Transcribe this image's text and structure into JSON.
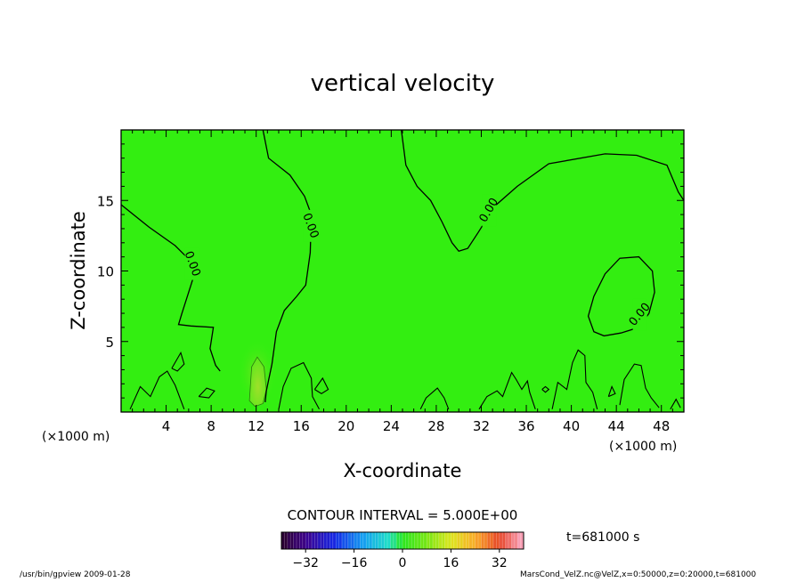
{
  "chart_data": {
    "type": "heatmap",
    "title": "vertical velocity",
    "xlabel": "X-coordinate",
    "ylabel": "Z-coordinate",
    "x_unit": "(×1000 m)",
    "xlim": [
      0,
      50
    ],
    "ylim": [
      0,
      20
    ],
    "xticks": [
      4,
      8,
      12,
      16,
      20,
      24,
      28,
      32,
      36,
      40,
      44,
      48
    ],
    "yticks": [
      5,
      10,
      15
    ],
    "contour_interval_label": "CONTOUR INTERVAL = 5.000E+00",
    "time_label": "t=681000 s",
    "background_color": "#33ee11",
    "colorbar": {
      "ticks": [
        -32,
        -16,
        0,
        16,
        32
      ],
      "range": [
        -40,
        40
      ]
    },
    "contours": [
      {
        "level_label": "0.00",
        "label_x": 6.3,
        "label_y": 10.5,
        "points": [
          [
            0,
            14.7
          ],
          [
            2.5,
            13.1
          ],
          [
            4.8,
            11.8
          ],
          [
            5.8,
            11
          ],
          [
            6.6,
            10
          ],
          [
            6.2,
            9
          ],
          [
            5.4,
            7
          ],
          [
            5.1,
            6.2
          ],
          [
            6.2,
            6.1
          ],
          [
            8.2,
            6
          ],
          [
            7.9,
            4.5
          ],
          [
            8.4,
            3.3
          ],
          [
            8.8,
            2.9
          ]
        ]
      },
      {
        "level_label": "0.00",
        "label_x": 16.8,
        "label_y": 13.2,
        "points": [
          [
            12.6,
            20
          ],
          [
            13.1,
            18
          ],
          [
            15,
            16.8
          ],
          [
            16.3,
            15.3
          ],
          [
            16.9,
            14
          ],
          [
            16.8,
            11.3
          ],
          [
            16.4,
            9
          ],
          [
            15.6,
            8.2
          ],
          [
            14.5,
            7.2
          ],
          [
            13.8,
            5.7
          ],
          [
            13.4,
            3.4
          ],
          [
            12.9,
            1.5
          ],
          [
            12.8,
            0.7
          ]
        ]
      },
      {
        "level_label": "0.00",
        "label_x": 32.7,
        "label_y": 14.3,
        "points": [
          [
            24.9,
            20
          ],
          [
            25.3,
            17.5
          ],
          [
            26.3,
            16
          ],
          [
            27.5,
            15
          ],
          [
            28.5,
            13.5
          ],
          [
            29.4,
            12
          ],
          [
            30,
            11.4
          ],
          [
            30.8,
            11.6
          ],
          [
            31.7,
            12.7
          ],
          [
            33.2,
            14.6
          ],
          [
            35.2,
            16
          ],
          [
            38,
            17.6
          ],
          [
            43,
            18.3
          ],
          [
            45.8,
            18.2
          ],
          [
            48.5,
            17.5
          ],
          [
            49.5,
            15.6
          ],
          [
            50,
            15
          ]
        ]
      },
      {
        "level_label": "0.00",
        "label_x": 46.1,
        "label_y": 6.9,
        "closed": true,
        "points": [
          [
            42,
            8.2
          ],
          [
            43,
            9.8
          ],
          [
            44.3,
            10.9
          ],
          [
            46,
            11
          ],
          [
            47.2,
            10
          ],
          [
            47.4,
            8.5
          ],
          [
            46.9,
            7
          ],
          [
            46,
            6
          ],
          [
            44.4,
            5.6
          ],
          [
            42.9,
            5.4
          ],
          [
            42,
            5.7
          ],
          [
            41.5,
            6.8
          ]
        ]
      }
    ],
    "small_contours": [
      [
        [
          0.8,
          0.2
        ],
        [
          1.7,
          1.8
        ],
        [
          2.6,
          1.1
        ],
        [
          3.4,
          2.5
        ],
        [
          4.1,
          2.9
        ],
        [
          4.8,
          1.9
        ],
        [
          5.6,
          0.2
        ]
      ],
      [
        [
          4.5,
          3.1
        ],
        [
          5.3,
          4.2
        ],
        [
          5.6,
          3.4
        ],
        [
          5,
          2.9
        ],
        [
          4.5,
          3.1
        ]
      ],
      [
        [
          6.9,
          1.1
        ],
        [
          7.6,
          1.7
        ],
        [
          8.3,
          1.5
        ],
        [
          7.8,
          1
        ],
        [
          6.9,
          1.1
        ]
      ],
      [
        [
          14,
          0.2
        ],
        [
          14.4,
          1.8
        ],
        [
          15.1,
          3.1
        ],
        [
          16.2,
          3.5
        ],
        [
          16.9,
          2.4
        ],
        [
          17,
          1.1
        ],
        [
          17.6,
          0.2
        ]
      ],
      [
        [
          17.2,
          1.6
        ],
        [
          17.9,
          2.4
        ],
        [
          18.4,
          1.6
        ],
        [
          17.8,
          1.3
        ],
        [
          17.2,
          1.6
        ]
      ],
      [
        [
          26.6,
          0.2
        ],
        [
          27.1,
          1
        ],
        [
          28.1,
          1.7
        ],
        [
          28.7,
          1
        ],
        [
          29.1,
          0.2
        ]
      ],
      [
        [
          31.8,
          0.2
        ],
        [
          32.5,
          1.1
        ],
        [
          33.4,
          1.5
        ],
        [
          33.9,
          1.1
        ],
        [
          34.7,
          2.8
        ],
        [
          35.1,
          2.3
        ],
        [
          35.6,
          1.6
        ],
        [
          36.1,
          2.2
        ],
        [
          36.3,
          1.4
        ],
        [
          36.8,
          0.2
        ]
      ],
      [
        [
          37.4,
          1.6
        ],
        [
          37.7,
          1.8
        ],
        [
          38,
          1.6
        ],
        [
          37.7,
          1.4
        ],
        [
          37.4,
          1.6
        ]
      ],
      [
        [
          38.3,
          0.2
        ],
        [
          38.8,
          2.1
        ],
        [
          39.6,
          1.6
        ],
        [
          40.1,
          3.5
        ],
        [
          40.6,
          4.4
        ],
        [
          41.2,
          4
        ],
        [
          41.3,
          2.1
        ],
        [
          41.9,
          1.4
        ],
        [
          42.3,
          0.2
        ]
      ],
      [
        [
          43.3,
          1.1
        ],
        [
          43.6,
          1.8
        ],
        [
          43.9,
          1.3
        ],
        [
          43.3,
          1.1
        ]
      ],
      [
        [
          44.3,
          0.5
        ],
        [
          44.7,
          2.3
        ],
        [
          45.6,
          3.4
        ],
        [
          46.2,
          3.3
        ],
        [
          46.6,
          1.7
        ],
        [
          47.1,
          1
        ],
        [
          47.8,
          0.3
        ]
      ],
      [
        [
          48.8,
          0.2
        ],
        [
          49.3,
          0.9
        ],
        [
          49.7,
          0.3
        ]
      ]
    ],
    "updraft_blob": {
      "peak": 4,
      "points": [
        [
          11.4,
          0.8
        ],
        [
          11.6,
          3.2
        ],
        [
          12.1,
          3.9
        ],
        [
          12.7,
          3.2
        ],
        [
          12.9,
          1.6
        ],
        [
          12.6,
          0.6
        ],
        [
          11.9,
          0.4
        ]
      ]
    }
  },
  "footer": {
    "left": "/usr/bin/gpview   2009-01-28",
    "right": "MarsCond_VelZ.nc@VelZ,x=0:50000,z=0:20000,t=681000"
  }
}
